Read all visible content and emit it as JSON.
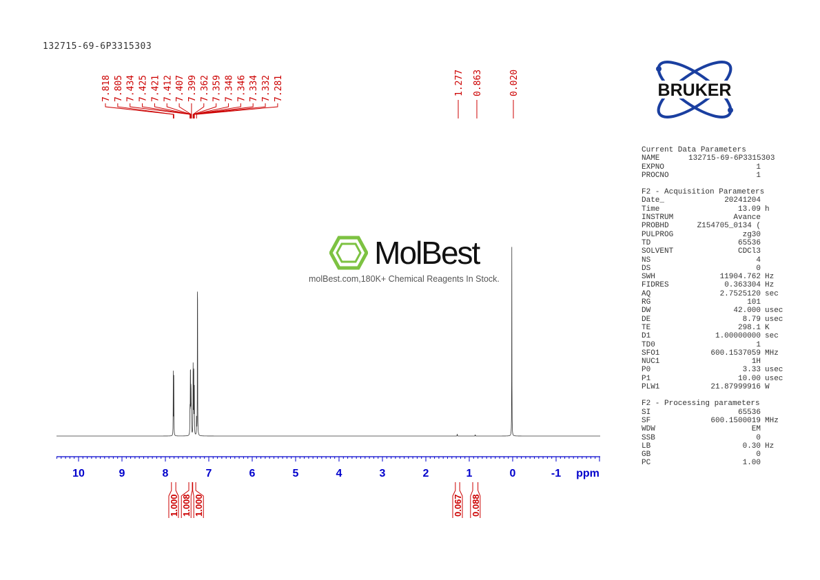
{
  "title": "132715-69-6P3315303",
  "logo": {
    "text": "BRUKER",
    "color": "#1a3fa0"
  },
  "watermark": {
    "brand": "MolBest",
    "tagline": "molBest.com,180K+ Chemical Reagents In Stock.",
    "color": "#7dc242"
  },
  "params": [
    {
      "heading": "Current Data Parameters",
      "rows": [
        [
          "NAME",
          "132715-69-6P3315303",
          ""
        ],
        [
          "EXPNO",
          "1",
          ""
        ],
        [
          "PROCNO",
          "1",
          ""
        ]
      ]
    },
    {
      "heading": "F2 - Acquisition Parameters",
      "rows": [
        [
          "Date_",
          "20241204",
          ""
        ],
        [
          "Time",
          "13.09",
          "h"
        ],
        [
          "INSTRUM",
          "Avance",
          ""
        ],
        [
          "PROBHD",
          "Z154705_0134 (",
          ""
        ],
        [
          "PULPROG",
          "zg30",
          ""
        ],
        [
          "TD",
          "65536",
          ""
        ],
        [
          "SOLVENT",
          "CDCl3",
          ""
        ],
        [
          "NS",
          "4",
          ""
        ],
        [
          "DS",
          "0",
          ""
        ],
        [
          "SWH",
          "11904.762",
          "Hz"
        ],
        [
          "FIDRES",
          "0.363304",
          "Hz"
        ],
        [
          "AQ",
          "2.7525120",
          "sec"
        ],
        [
          "RG",
          "101",
          ""
        ],
        [
          "DW",
          "42.000",
          "usec"
        ],
        [
          "DE",
          "8.79",
          "usec"
        ],
        [
          "TE",
          "298.1",
          "K"
        ],
        [
          "D1",
          "1.00000000",
          "sec"
        ],
        [
          "TD0",
          "1",
          ""
        ],
        [
          "SFO1",
          "600.1537059",
          "MHz"
        ],
        [
          "NUC1",
          "1H",
          ""
        ],
        [
          "P0",
          "3.33",
          "usec"
        ],
        [
          "P1",
          "10.00",
          "usec"
        ],
        [
          "PLW1",
          "21.87999916",
          "W"
        ]
      ]
    },
    {
      "heading": "F2 - Processing parameters",
      "rows": [
        [
          "SI",
          "65536",
          ""
        ],
        [
          "SF",
          "600.1500019",
          "MHz"
        ],
        [
          "WDW",
          "EM",
          ""
        ],
        [
          "SSB",
          "0",
          ""
        ],
        [
          "LB",
          "0.30",
          "Hz"
        ],
        [
          "GB",
          "0",
          ""
        ],
        [
          "PC",
          "1.00",
          ""
        ]
      ]
    }
  ],
  "chart_data": {
    "type": "line",
    "xlabel": "ppm",
    "xlim": [
      10.5,
      -2.0
    ],
    "x_reversed": true,
    "x_ticks": [
      "10",
      "9",
      "8",
      "7",
      "6",
      "5",
      "4",
      "3",
      "2",
      "1",
      "0",
      "-1"
    ],
    "x_tick_values": [
      10,
      9,
      8,
      7,
      6,
      5,
      4,
      3,
      2,
      1,
      0,
      -1
    ],
    "peaks": [
      {
        "ppm": 7.818,
        "height": 0.29
      },
      {
        "ppm": 7.805,
        "height": 0.27
      },
      {
        "ppm": 7.434,
        "height": 0.14
      },
      {
        "ppm": 7.425,
        "height": 0.2
      },
      {
        "ppm": 7.421,
        "height": 0.22
      },
      {
        "ppm": 7.412,
        "height": 0.18
      },
      {
        "ppm": 7.407,
        "height": 0.17
      },
      {
        "ppm": 7.399,
        "height": 0.14
      },
      {
        "ppm": 7.362,
        "height": 0.2
      },
      {
        "ppm": 7.359,
        "height": 0.22
      },
      {
        "ppm": 7.348,
        "height": 0.2
      },
      {
        "ppm": 7.346,
        "height": 0.2
      },
      {
        "ppm": 7.334,
        "height": 0.12
      },
      {
        "ppm": 7.332,
        "height": 0.12
      },
      {
        "ppm": 7.26,
        "height": 1.0
      },
      {
        "ppm": 7.281,
        "height": 0.08
      },
      {
        "ppm": 1.277,
        "height": 0.01
      },
      {
        "ppm": 0.863,
        "height": 0.008
      },
      {
        "ppm": 0.02,
        "height": 0.835
      }
    ],
    "peak_labels_left": [
      "7.818",
      "7.805",
      "7.434",
      "7.425",
      "7.421",
      "7.412",
      "7.407",
      "7.399",
      "7.362",
      "7.359",
      "7.348",
      "7.346",
      "7.334",
      "7.332",
      "7.281"
    ],
    "peak_labels_right": [
      "1.277",
      "0.863",
      "0.020"
    ],
    "integrals": [
      {
        "from": 7.86,
        "to": 7.76,
        "value": "1.000"
      },
      {
        "from": 7.46,
        "to": 7.38,
        "value": "1.008"
      },
      {
        "from": 7.37,
        "to": 7.3,
        "value": "1.000"
      },
      {
        "from": 1.32,
        "to": 1.22,
        "value": "0.067"
      },
      {
        "from": 0.92,
        "to": 0.8,
        "value": "0.088"
      }
    ],
    "line_color": "#333333",
    "axis_color": "#0000cc",
    "label_color": "#cc0000"
  }
}
